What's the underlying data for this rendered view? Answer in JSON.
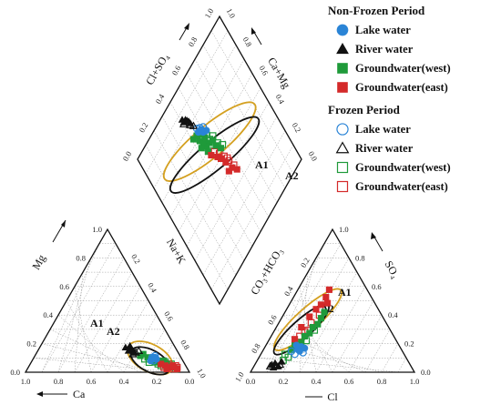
{
  "chart_data": {
    "type": "scatter",
    "title": "",
    "legend": {
      "placement": "top-right",
      "groups": [
        {
          "heading": "Non-Frozen Period",
          "items": [
            {
              "label": "Lake water",
              "marker": "circle",
              "filled": true,
              "color": "#2a84d6"
            },
            {
              "label": "River water",
              "marker": "triangle",
              "filled": true,
              "color": "#111111"
            },
            {
              "label": "Groundwater(west)",
              "marker": "square",
              "filled": true,
              "color": "#1f9a3a"
            },
            {
              "label": "Groundwater(east)",
              "marker": "square",
              "filled": true,
              "color": "#d42a2a"
            }
          ]
        },
        {
          "heading": "Frozen  Period",
          "items": [
            {
              "label": "Lake water",
              "marker": "circle",
              "filled": false,
              "color": "#2a84d6"
            },
            {
              "label": "River water",
              "marker": "triangle",
              "filled": false,
              "color": "#111111"
            },
            {
              "label": "Groundwater(west)",
              "marker": "square",
              "filled": false,
              "color": "#1f9a3a"
            },
            {
              "label": "Groundwater(east)",
              "marker": "square",
              "filled": false,
              "color": "#d42a2a"
            }
          ]
        }
      ]
    },
    "cation_triangle": {
      "axis_labels": {
        "left": "Mg",
        "bottom": "Ca",
        "right": "Na+K"
      },
      "ticks_left": [
        "0.0",
        "0.2",
        "0.4",
        "0.6",
        "0.8",
        "1.0"
      ],
      "ticks_bottom": [
        "1.0",
        "0.8",
        "0.6",
        "0.4",
        "0.2",
        "0.0"
      ],
      "ticks_right": [
        "0.2",
        "0.4",
        "0.6",
        "0.8",
        "1.0"
      ],
      "zones": [
        {
          "label": "A1",
          "color": "#d4a020",
          "center": [
            0.24,
            0.1
          ],
          "rx": 0.15,
          "ry": 0.05
        },
        {
          "label": "A2",
          "color": "#111111",
          "center": [
            0.24,
            0.08
          ],
          "rx": 0.13,
          "ry": 0.04
        }
      ],
      "groups": {
        "lake_nf": [
          [
            0.2,
            0.08
          ],
          [
            0.21,
            0.09
          ],
          [
            0.22,
            0.08
          ],
          [
            0.19,
            0.08
          ],
          [
            0.23,
            0.07
          ],
          [
            0.2,
            0.09
          ]
        ],
        "river_nf": [
          [
            0.36,
            0.14
          ],
          [
            0.38,
            0.13
          ],
          [
            0.4,
            0.15
          ],
          [
            0.34,
            0.12
          ],
          [
            0.37,
            0.16
          ]
        ],
        "gww_nf": [
          [
            0.15,
            0.05
          ],
          [
            0.18,
            0.07
          ],
          [
            0.12,
            0.05
          ],
          [
            0.25,
            0.09
          ],
          [
            0.28,
            0.11
          ],
          [
            0.1,
            0.04
          ],
          [
            0.2,
            0.06
          ],
          [
            0.3,
            0.1
          ],
          [
            0.08,
            0.03
          ],
          [
            0.14,
            0.07
          ]
        ],
        "gwe_nf": [
          [
            0.1,
            0.03
          ],
          [
            0.08,
            0.04
          ],
          [
            0.12,
            0.02
          ],
          [
            0.05,
            0.02
          ],
          [
            0.16,
            0.05
          ],
          [
            0.13,
            0.04
          ],
          [
            0.07,
            0.03
          ]
        ],
        "lake_f": [
          [
            0.2,
            0.1
          ],
          [
            0.22,
            0.09
          ],
          [
            0.21,
            0.07
          ]
        ],
        "river_f": [
          [
            0.33,
            0.12
          ],
          [
            0.35,
            0.11
          ],
          [
            0.31,
            0.13
          ]
        ],
        "gww_f": [
          [
            0.16,
            0.04
          ],
          [
            0.11,
            0.04
          ],
          [
            0.24,
            0.06
          ],
          [
            0.06,
            0.02
          ],
          [
            0.18,
            0.05
          ],
          [
            0.13,
            0.06
          ],
          [
            0.27,
            0.08
          ],
          [
            0.09,
            0.05
          ]
        ],
        "gwe_f": [
          [
            0.05,
            0.03
          ],
          [
            0.07,
            0.02
          ],
          [
            0.11,
            0.05
          ],
          [
            0.09,
            0.04
          ],
          [
            0.14,
            0.03
          ],
          [
            0.06,
            0.04
          ]
        ]
      }
    },
    "anion_triangle": {
      "axis_labels": {
        "left": "CO₃+HCO₃",
        "bottom": "Cl",
        "right": "SO₄"
      },
      "ticks_left": [
        "1.0",
        "0.8",
        "0.6",
        "0.4",
        "0.2"
      ],
      "ticks_bottom": [
        "0.0",
        "0.2",
        "0.4",
        "0.6",
        "0.8",
        "1.0"
      ],
      "ticks_right": [
        "1.0",
        "0.8",
        "0.6",
        "0.4",
        "0.2",
        "0.0"
      ],
      "zones": [
        {
          "label": "A1",
          "color": "#d4a020",
          "center": [
            0.3,
            0.32
          ],
          "rx": 0.27,
          "ry": 0.06
        },
        {
          "label": "A2",
          "color": "#111111",
          "center": [
            0.26,
            0.26
          ],
          "rx": 0.22,
          "ry": 0.05
        }
      ],
      "groups": {
        "lake_nf": [
          [
            0.26,
            0.15
          ],
          [
            0.28,
            0.17
          ],
          [
            0.25,
            0.18
          ],
          [
            0.27,
            0.14
          ],
          [
            0.3,
            0.16
          ]
        ],
        "river_nf": [
          [
            0.1,
            0.05
          ],
          [
            0.12,
            0.06
          ],
          [
            0.14,
            0.04
          ],
          [
            0.11,
            0.03
          ],
          [
            0.16,
            0.07
          ]
        ],
        "gww_nf": [
          [
            0.28,
            0.2
          ],
          [
            0.33,
            0.26
          ],
          [
            0.35,
            0.3
          ],
          [
            0.22,
            0.15
          ],
          [
            0.3,
            0.24
          ],
          [
            0.4,
            0.36
          ],
          [
            0.42,
            0.4
          ],
          [
            0.38,
            0.32
          ],
          [
            0.24,
            0.19
          ]
        ],
        "gwe_nf": [
          [
            0.4,
            0.45
          ],
          [
            0.45,
            0.55
          ],
          [
            0.37,
            0.42
          ],
          [
            0.43,
            0.5
          ],
          [
            0.28,
            0.3
          ],
          [
            0.24,
            0.22
          ],
          [
            0.33,
            0.37
          ],
          [
            0.44,
            0.46
          ]
        ],
        "lake_f": [
          [
            0.22,
            0.14
          ],
          [
            0.24,
            0.12
          ],
          [
            0.29,
            0.13
          ]
        ],
        "river_f": [
          [
            0.13,
            0.04
          ],
          [
            0.15,
            0.05
          ],
          [
            0.09,
            0.04
          ]
        ],
        "gww_f": [
          [
            0.18,
            0.12
          ],
          [
            0.2,
            0.1
          ],
          [
            0.31,
            0.21
          ],
          [
            0.26,
            0.16
          ],
          [
            0.36,
            0.28
          ],
          [
            0.17,
            0.08
          ]
        ],
        "gwe_f": [
          [
            0.32,
            0.28
          ],
          [
            0.39,
            0.38
          ],
          [
            0.27,
            0.24
          ],
          [
            0.34,
            0.33
          ],
          [
            0.3,
            0.27
          ]
        ]
      }
    },
    "diamond": {
      "axis_labels": {
        "upper_left": "Cl+SO₄",
        "upper_right": "Ca+Mg"
      },
      "ticks_upper_left": [
        "0.0",
        "0.2",
        "0.4",
        "0.6",
        "0.8",
        "1.0"
      ],
      "ticks_upper_right": [
        "1.0",
        "0.8",
        "0.6",
        "0.4",
        "0.2",
        "0.0"
      ],
      "zones": [
        {
          "label": "A1",
          "color": "#d4a020",
          "center": [
            0.24,
            0.4
          ],
          "rx": 0.34,
          "ry": 0.09
        },
        {
          "label": "A2",
          "color": "#111111",
          "center": [
            0.27,
            0.47
          ],
          "rx": 0.33,
          "ry": 0.08
        }
      ],
      "groups": {
        "lake_nf": [
          [
            0.22,
            0.16
          ],
          [
            0.24,
            0.18
          ],
          [
            0.23,
            0.15
          ],
          [
            0.25,
            0.17
          ],
          [
            0.21,
            0.18
          ],
          [
            0.26,
            0.16
          ]
        ],
        "river_nf": [
          [
            0.13,
            0.04
          ],
          [
            0.14,
            0.05
          ],
          [
            0.12,
            0.07
          ],
          [
            0.15,
            0.06
          ],
          [
            0.11,
            0.04
          ],
          [
            0.16,
            0.08
          ]
        ],
        "gww_nf": [
          [
            0.25,
            0.24
          ],
          [
            0.28,
            0.3
          ],
          [
            0.22,
            0.28
          ],
          [
            0.32,
            0.33
          ],
          [
            0.26,
            0.34
          ],
          [
            0.2,
            0.22
          ],
          [
            0.3,
            0.27
          ],
          [
            0.35,
            0.36
          ],
          [
            0.24,
            0.31
          ],
          [
            0.18,
            0.26
          ],
          [
            0.27,
            0.4
          ],
          [
            0.23,
            0.36
          ]
        ],
        "gwe_nf": [
          [
            0.38,
            0.52
          ],
          [
            0.42,
            0.58
          ],
          [
            0.35,
            0.48
          ],
          [
            0.45,
            0.6
          ],
          [
            0.33,
            0.46
          ],
          [
            0.4,
            0.62
          ],
          [
            0.29,
            0.44
          ]
        ],
        "lake_f": [
          [
            0.2,
            0.14
          ],
          [
            0.22,
            0.13
          ],
          [
            0.24,
            0.12
          ]
        ],
        "river_f": [
          [
            0.16,
            0.1
          ],
          [
            0.18,
            0.11
          ],
          [
            0.12,
            0.09
          ]
        ],
        "gww_f": [
          [
            0.28,
            0.26
          ],
          [
            0.3,
            0.22
          ],
          [
            0.24,
            0.25
          ],
          [
            0.33,
            0.3
          ],
          [
            0.21,
            0.2
          ],
          [
            0.36,
            0.32
          ],
          [
            0.26,
            0.21
          ],
          [
            0.29,
            0.32
          ]
        ],
        "gwe_f": [
          [
            0.37,
            0.45
          ],
          [
            0.4,
            0.5
          ],
          [
            0.34,
            0.42
          ],
          [
            0.43,
            0.55
          ],
          [
            0.31,
            0.4
          ],
          [
            0.39,
            0.47
          ]
        ]
      }
    }
  }
}
